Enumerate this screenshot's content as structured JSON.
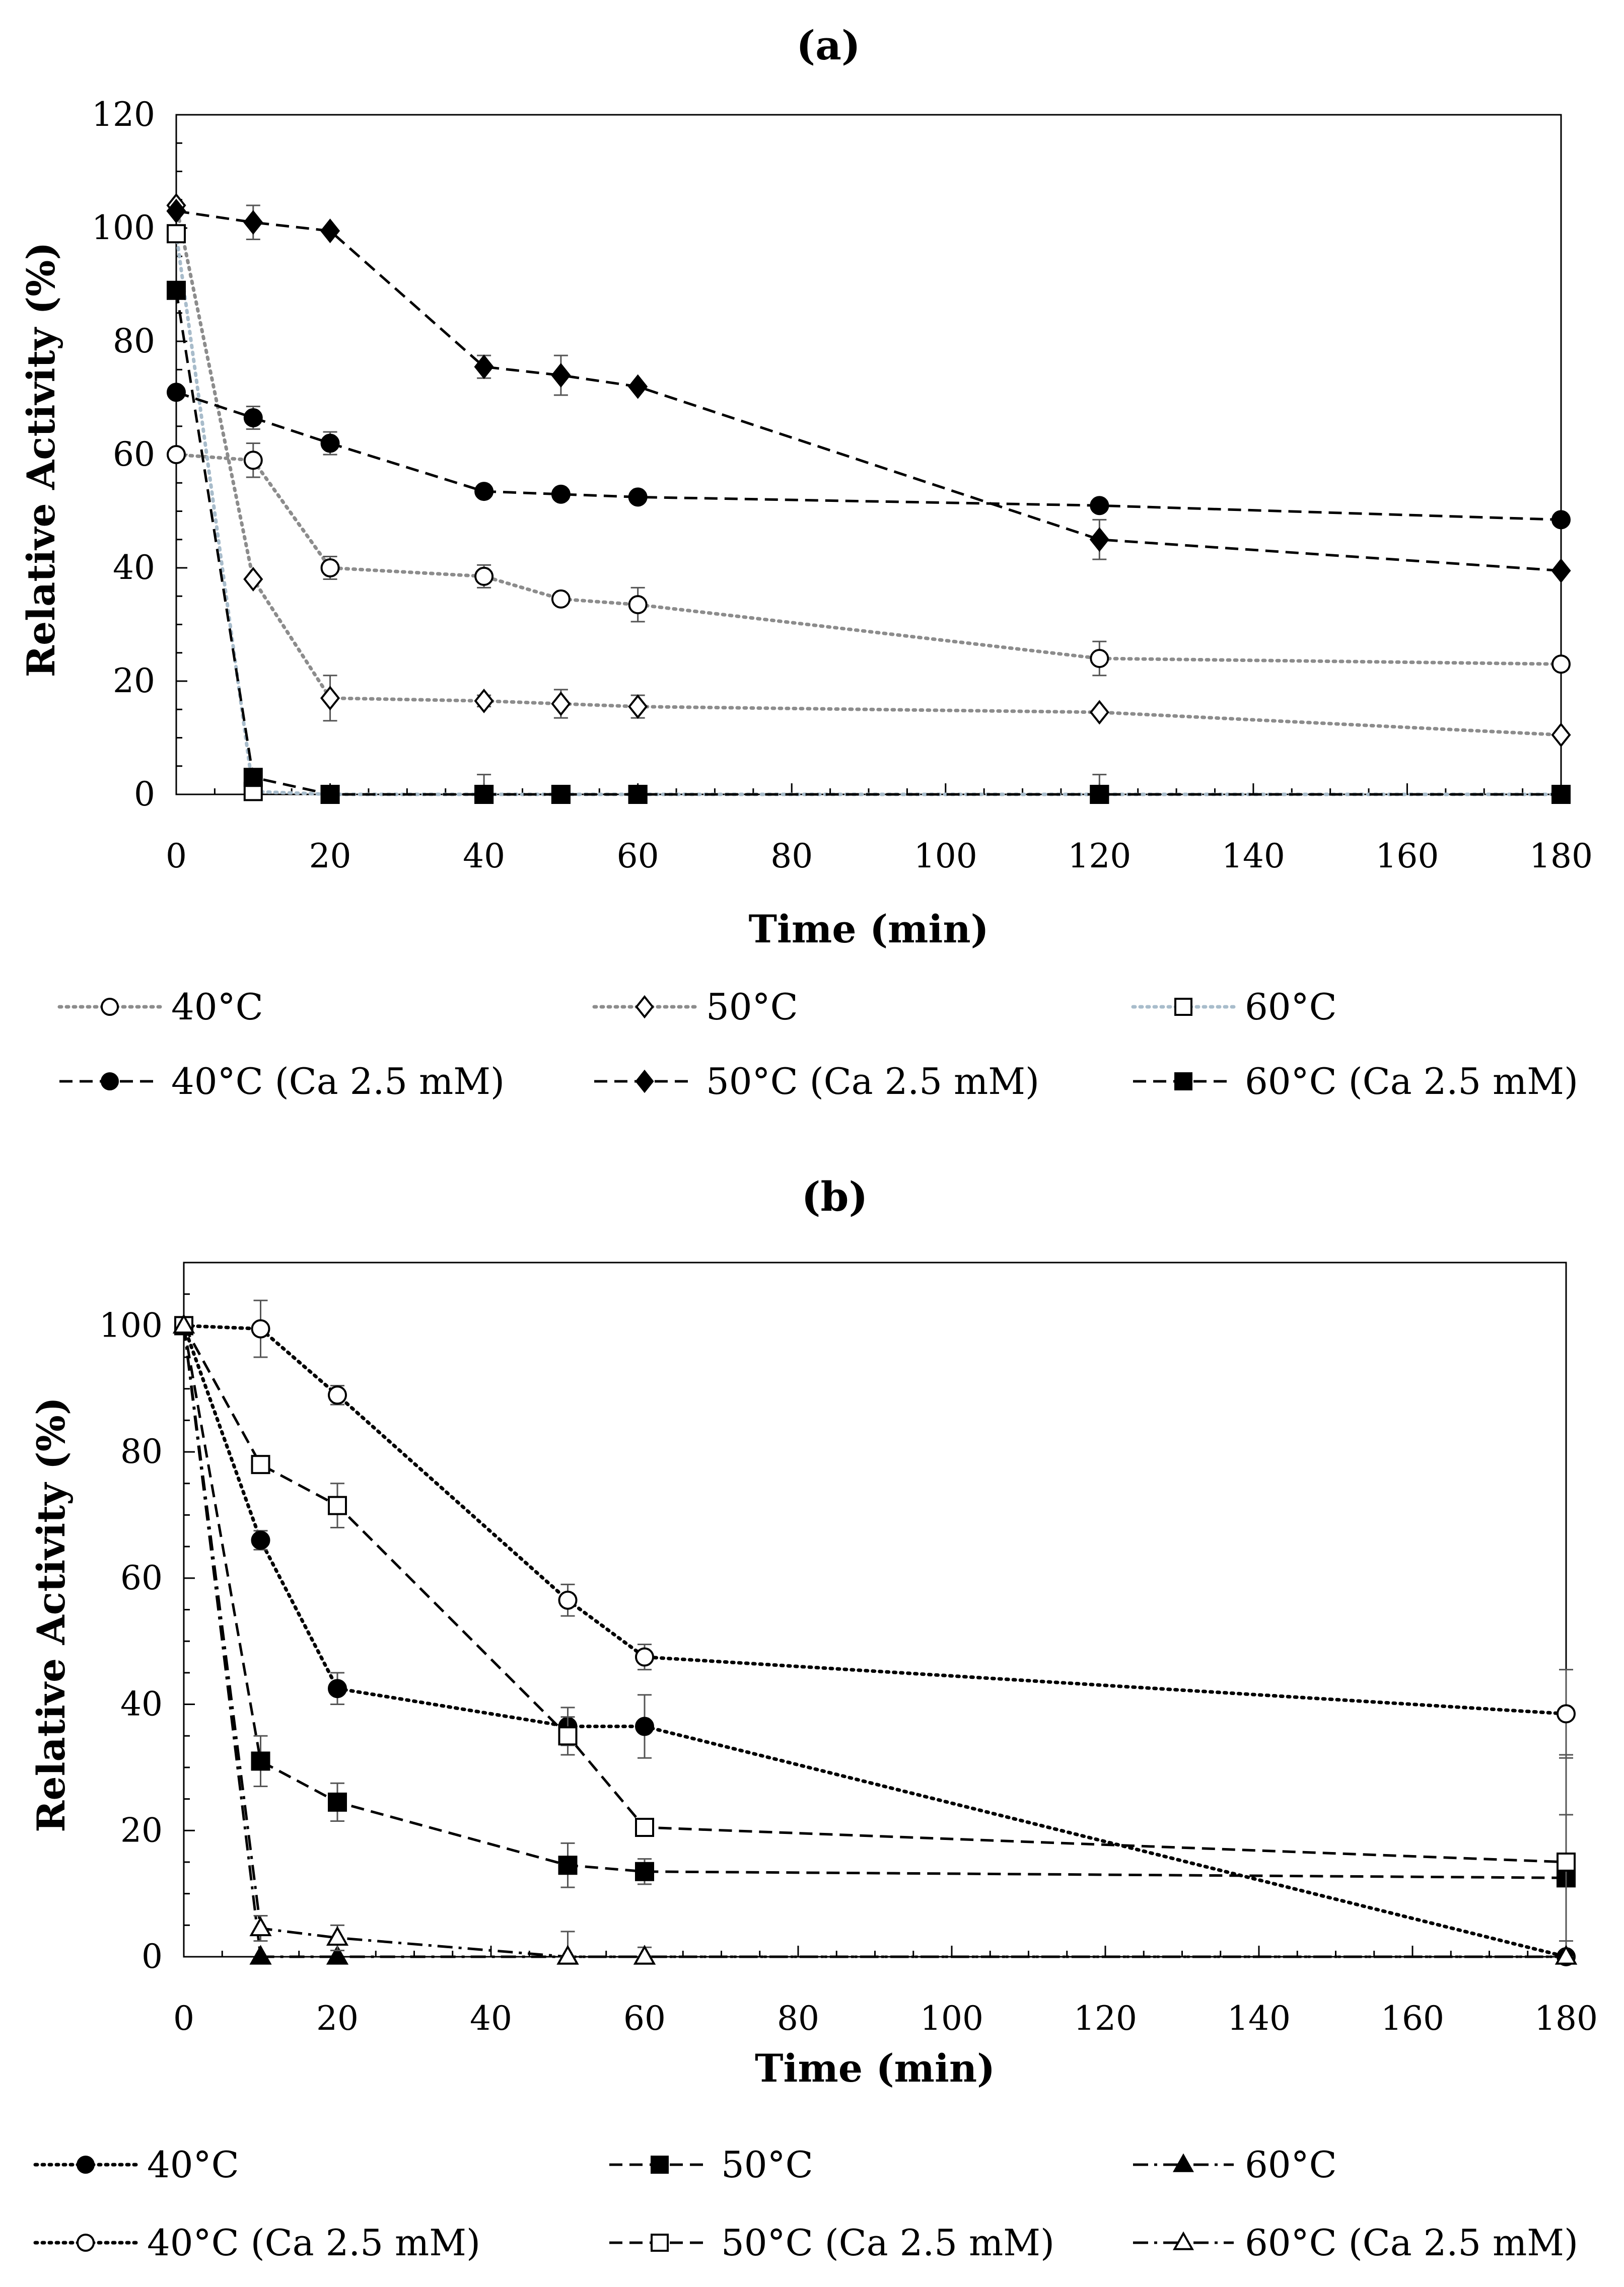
{
  "chart_data": [
    {
      "type": "line",
      "title": "(a)",
      "xlabel": "Time (min)",
      "ylabel": "Relative Activity (%)",
      "xlim": [
        0,
        180
      ],
      "ylim": [
        0,
        120
      ],
      "xticks": [
        0,
        20,
        40,
        60,
        80,
        100,
        120,
        140,
        160,
        180
      ],
      "yticks": [
        0,
        20,
        40,
        60,
        80,
        100,
        120
      ],
      "grid": false,
      "legend_position": "bottom",
      "series": [
        {
          "name": "40°C",
          "marker": "circle",
          "filled": false,
          "dash": "dotted",
          "color": "#8c8c8c",
          "x": [
            0,
            10,
            20,
            40,
            50,
            60,
            120,
            180
          ],
          "y": [
            60,
            59,
            40,
            38.5,
            34.5,
            33.5,
            24,
            23
          ],
          "err": [
            0,
            3,
            2,
            2,
            1,
            3,
            3,
            0
          ]
        },
        {
          "name": "50°C",
          "marker": "diamond",
          "filled": false,
          "dash": "dotted",
          "color": "#8c8c8c",
          "x": [
            0,
            10,
            20,
            40,
            50,
            60,
            120,
            180
          ],
          "y": [
            104,
            38,
            17,
            16.5,
            16,
            15.5,
            14.5,
            10.5
          ],
          "err": [
            0,
            0,
            4,
            1,
            2.5,
            2,
            0,
            0
          ]
        },
        {
          "name": "60°C",
          "marker": "square",
          "filled": false,
          "dash": "dotted",
          "color": "#a8bccb",
          "x": [
            0,
            10,
            20,
            40,
            50,
            60,
            120,
            180
          ],
          "y": [
            99,
            0.5,
            0,
            0,
            0,
            0,
            0,
            0
          ],
          "err": [
            0,
            0,
            0,
            3.5,
            0,
            0,
            3.5,
            0
          ]
        },
        {
          "name": "40°C (Ca 2.5 mM)",
          "marker": "circle",
          "filled": true,
          "dash": "dashed",
          "color": "#000000",
          "x": [
            0,
            10,
            20,
            40,
            50,
            60,
            120,
            180
          ],
          "y": [
            71,
            66.5,
            62,
            53.5,
            53,
            52.5,
            51,
            48.5
          ],
          "err": [
            0,
            2,
            2,
            0,
            0,
            0,
            0,
            0
          ]
        },
        {
          "name": "50°C (Ca 2.5 mM)",
          "marker": "diamond",
          "filled": true,
          "dash": "dashed",
          "color": "#000000",
          "x": [
            0,
            10,
            20,
            40,
            50,
            60,
            120,
            180
          ],
          "y": [
            103,
            101,
            99.5,
            75.5,
            74,
            72,
            45,
            39.5
          ],
          "err": [
            0,
            3,
            0,
            2,
            3.5,
            0,
            3.5,
            0
          ]
        },
        {
          "name": "60°C (Ca 2.5 mM)",
          "marker": "square",
          "filled": true,
          "dash": "dashed",
          "color": "#000000",
          "x": [
            0,
            10,
            20,
            40,
            50,
            60,
            120,
            180
          ],
          "y": [
            89,
            3,
            0,
            0,
            0,
            0,
            0,
            0
          ],
          "err": [
            0,
            0,
            0,
            0,
            0,
            0,
            0,
            0
          ]
        }
      ]
    },
    {
      "type": "line",
      "title": "(b)",
      "xlabel": "Time (min)",
      "ylabel": "Relative Activity (%)",
      "xlim": [
        0,
        180
      ],
      "ylim": [
        0,
        110
      ],
      "xticks": [
        0,
        20,
        40,
        60,
        80,
        100,
        120,
        140,
        160,
        180
      ],
      "yticks": [
        0,
        20,
        40,
        60,
        80,
        100
      ],
      "grid": false,
      "legend_position": "bottom",
      "series": [
        {
          "name": "40°C",
          "marker": "circle",
          "filled": true,
          "dash": "dotted",
          "color": "#000000",
          "x": [
            0,
            10,
            20,
            50,
            60,
            180
          ],
          "y": [
            100,
            66,
            42.5,
            36.5,
            36.5,
            0
          ],
          "err": [
            0,
            1.5,
            2.5,
            3,
            5,
            0
          ]
        },
        {
          "name": "50°C",
          "marker": "square",
          "filled": true,
          "dash": "dashed",
          "color": "#000000",
          "x": [
            0,
            10,
            20,
            50,
            60,
            180
          ],
          "y": [
            100,
            31,
            24.5,
            14.5,
            13.5,
            12.5
          ],
          "err": [
            0,
            4,
            3,
            3.5,
            2,
            10
          ]
        },
        {
          "name": "60°C",
          "marker": "triangle",
          "filled": true,
          "dash": "dashdot",
          "color": "#000000",
          "x": [
            0,
            10,
            20,
            50,
            60,
            180
          ],
          "y": [
            100,
            0,
            0,
            0,
            0,
            0
          ],
          "err": [
            0,
            0,
            0,
            0,
            0,
            0
          ]
        },
        {
          "name": "40°C  (Ca 2.5 mM)",
          "marker": "circle",
          "filled": false,
          "dash": "dotted",
          "color": "#000000",
          "x": [
            0,
            10,
            20,
            50,
            60,
            180
          ],
          "y": [
            100,
            99.5,
            89,
            56.5,
            47.5,
            38.5
          ],
          "err": [
            0,
            4.5,
            1.5,
            2.5,
            2,
            7
          ]
        },
        {
          "name": "50°C  (Ca 2.5 mM)",
          "marker": "square",
          "filled": false,
          "dash": "dashed",
          "color": "#000000",
          "x": [
            0,
            10,
            20,
            50,
            60,
            180
          ],
          "y": [
            100,
            78,
            71.5,
            35,
            20.5,
            15
          ],
          "err": [
            0,
            0,
            3.5,
            3,
            0,
            17
          ]
        },
        {
          "name": "60°C  (Ca 2.5 mM)",
          "marker": "triangle",
          "filled": false,
          "dash": "dashdot",
          "color": "#000000",
          "x": [
            0,
            10,
            20,
            50,
            60,
            180
          ],
          "y": [
            100,
            4.5,
            3,
            0,
            0,
            0
          ],
          "err": [
            0,
            2,
            2,
            4,
            1.5,
            0
          ]
        }
      ]
    }
  ]
}
